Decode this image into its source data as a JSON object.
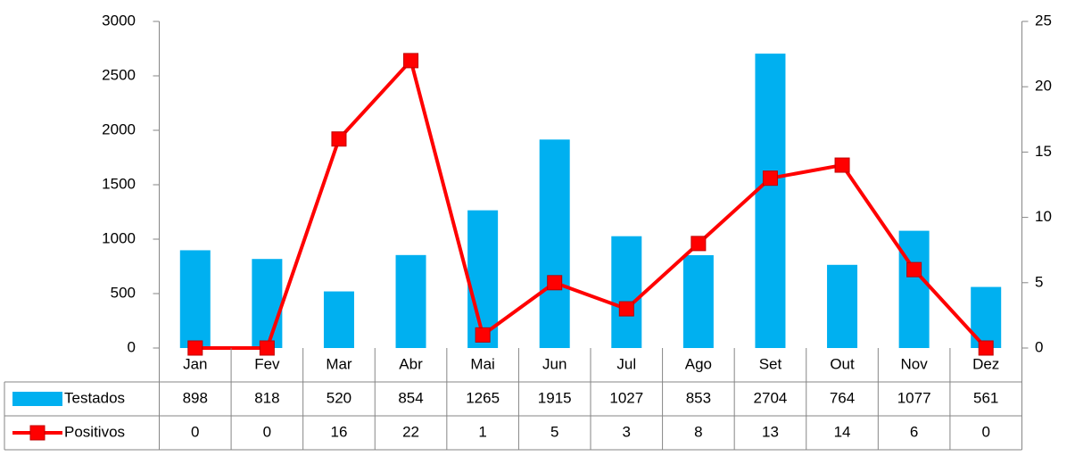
{
  "chart_data": {
    "type": "bar-line",
    "categories": [
      "Jan",
      "Fev",
      "Mar",
      "Abr",
      "Mai",
      "Jun",
      "Jul",
      "Ago",
      "Set",
      "Out",
      "Nov",
      "Dez"
    ],
    "series": [
      {
        "name": "Testados",
        "type": "bar",
        "color": "#00b0f0",
        "values": [
          898,
          818,
          520,
          854,
          1265,
          1915,
          1027,
          853,
          2704,
          764,
          1077,
          561
        ]
      },
      {
        "name": "Positivos",
        "type": "line",
        "axis": "y2",
        "color": "#ff0000",
        "values": [
          0,
          0,
          16,
          22,
          1,
          5,
          3,
          8,
          13,
          14,
          6,
          0
        ]
      }
    ],
    "ylim": [
      0,
      3000
    ],
    "yticks": [
      0,
      500,
      1000,
      1500,
      2000,
      2500,
      3000
    ],
    "y2lim": [
      0,
      25
    ],
    "y2ticks": [
      0,
      5,
      10,
      15,
      20,
      25
    ],
    "data_table": true
  }
}
